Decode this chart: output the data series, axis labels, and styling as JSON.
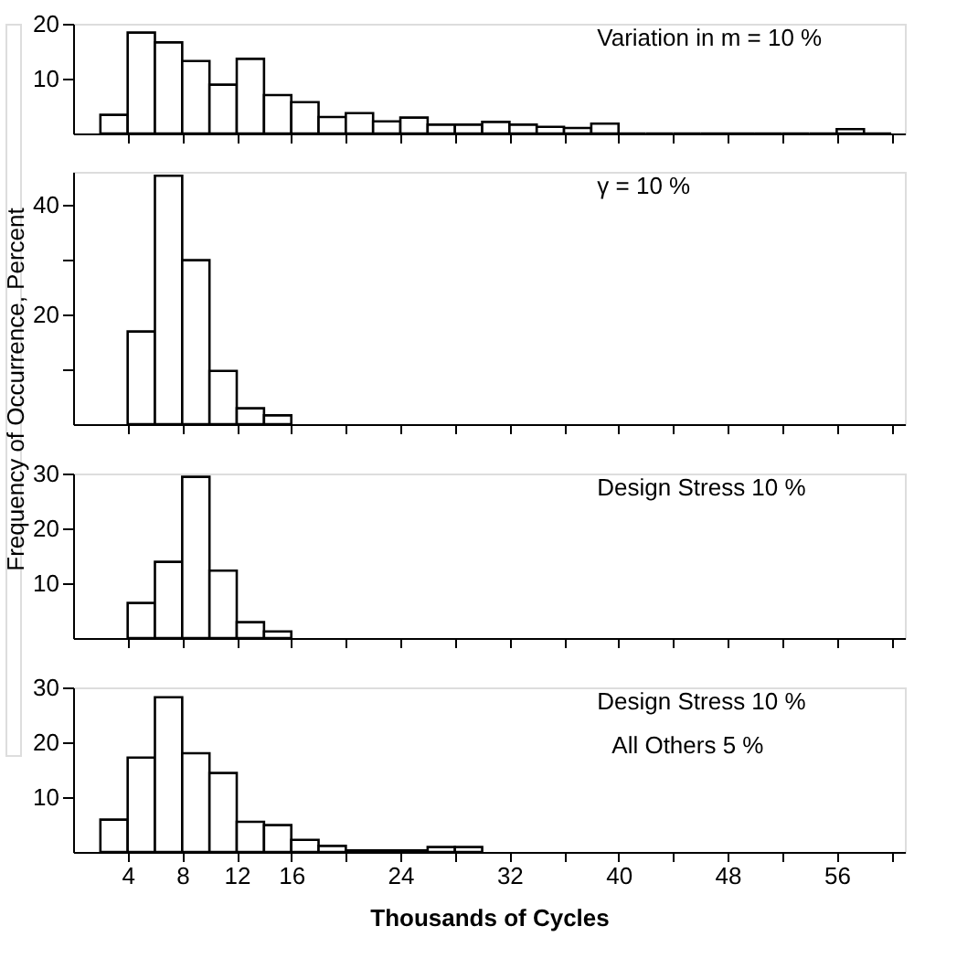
{
  "chart_data": [
    {
      "type": "histogram",
      "ylabel": "Frequency  of  Occurrence,  Percent",
      "annotations": [
        "Variation in  m = 10 %"
      ],
      "color": "#000000",
      "bins": [
        2,
        4,
        6,
        8,
        10,
        12,
        14,
        16,
        18,
        20,
        22,
        24,
        26,
        28,
        30,
        32,
        34,
        36,
        38,
        40,
        42,
        44,
        46,
        48,
        50,
        52,
        54,
        56,
        58,
        60
      ],
      "values": [
        3.4,
        18.4,
        16.6,
        13.2,
        8.9,
        13.6,
        7.0,
        5.7,
        3.0,
        3.7,
        2.2,
        2.9,
        1.6,
        1.6,
        2.1,
        1.6,
        1.2,
        1.0,
        1.8,
        0,
        0,
        0,
        0,
        0,
        0,
        0,
        0,
        0.8,
        0
      ],
      "xlim": [
        0,
        61
      ],
      "xticks": [
        4,
        8,
        12,
        16,
        20,
        24,
        28,
        32,
        36,
        40,
        44,
        48,
        52,
        56,
        60
      ],
      "ylim": [
        0,
        20
      ],
      "yticks": [
        10,
        20
      ],
      "tick_labels": "y"
    },
    {
      "type": "histogram",
      "annotations": [
        "γ =  10 %"
      ],
      "color": "#000000",
      "bins": [
        4,
        6,
        8,
        10,
        12,
        14,
        16
      ],
      "values": [
        16.9,
        45.3,
        29.9,
        9.7,
        2.9,
        1.6
      ],
      "xlim": [
        0,
        61
      ],
      "xticks": [
        4,
        8,
        12,
        16,
        20,
        24,
        28,
        32,
        36,
        40,
        44,
        48,
        52,
        56,
        60
      ],
      "ylim": [
        0,
        46
      ],
      "yticks": [
        {
          "value": 10,
          "label": null
        },
        20,
        {
          "value": 30,
          "label": null
        },
        40
      ],
      "tick_labels": "y"
    },
    {
      "type": "histogram",
      "annotations": [
        "Design Stress 10 %"
      ],
      "color": "#000000",
      "bins": [
        4,
        6,
        8,
        10,
        12,
        14,
        16
      ],
      "values": [
        6.4,
        13.9,
        29.4,
        12.3,
        2.9,
        1.2
      ],
      "xlim": [
        0,
        61
      ],
      "xticks": [
        4,
        8,
        12,
        16,
        20,
        24,
        28,
        32,
        36,
        40,
        44,
        48,
        52,
        56,
        60
      ],
      "ylim": [
        0,
        30
      ],
      "yticks": [
        10,
        20,
        30
      ],
      "tick_labels": "y"
    },
    {
      "type": "histogram",
      "xlabel": "Thousands  of  Cycles",
      "annotations": [
        "Design Stress  10 %",
        "All Others 5 %"
      ],
      "color": "#000000",
      "bins": [
        2,
        4,
        6,
        8,
        10,
        12,
        14,
        16,
        18,
        20,
        22,
        24,
        26,
        28,
        30
      ],
      "values": [
        5.9,
        17.2,
        28.2,
        18.0,
        14.4,
        5.5,
        4.9,
        2.2,
        1.1,
        0.3,
        0.3,
        0.3,
        0.9,
        0.9
      ],
      "xlim": [
        0,
        61
      ],
      "xticks": [
        4,
        8,
        12,
        16,
        {
          "value": 20,
          "label": null
        },
        24,
        {
          "value": 28,
          "label": null
        },
        32,
        {
          "value": 36,
          "label": null
        },
        40,
        {
          "value": 44,
          "label": null
        },
        48,
        {
          "value": 52,
          "label": null
        },
        56,
        {
          "value": 60,
          "label": null
        }
      ],
      "ylim": [
        0,
        30
      ],
      "yticks": [
        10,
        20,
        30
      ]
    }
  ]
}
